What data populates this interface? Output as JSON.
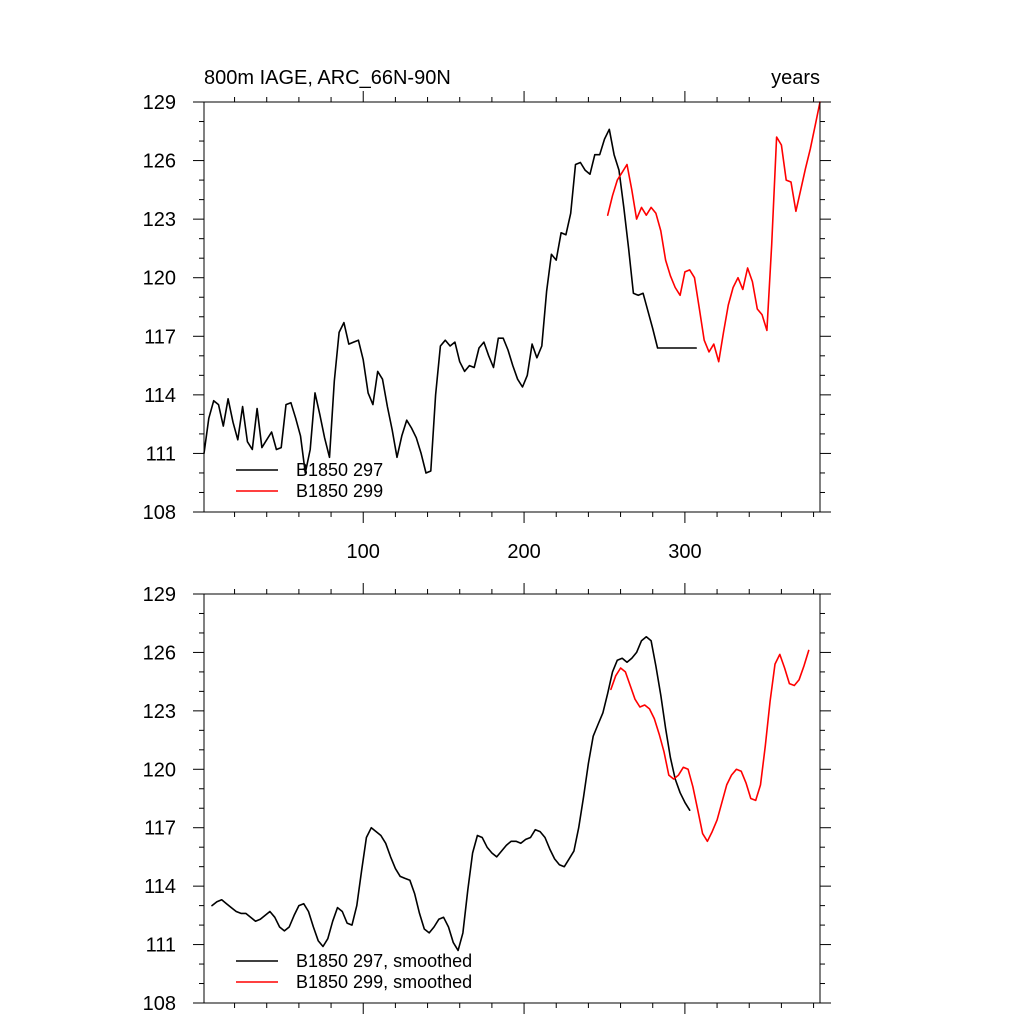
{
  "colors": {
    "series_1": "#000000",
    "series_2": "#ff0000",
    "background": "#ffffff"
  },
  "chart_data": [
    {
      "type": "line",
      "title_left": "800m IAGE, ARC_66N-90N",
      "title_right": "years",
      "xlim": [
        1,
        384
      ],
      "ylim": [
        108,
        129
      ],
      "x_ticks": [
        100,
        200,
        300
      ],
      "x_tick_labels": [
        "100",
        "200",
        "300"
      ],
      "y_ticks": [
        108,
        111,
        114,
        117,
        120,
        123,
        126,
        129
      ],
      "y_tick_labels": [
        "108",
        "111",
        "114",
        "117",
        "120",
        "123",
        "126",
        "129"
      ],
      "legend_position": "bottom-left",
      "series": [
        {
          "name": "B1850 297",
          "color": "#000000",
          "x": [
            1,
            4,
            7,
            10,
            13,
            16,
            19,
            22,
            25,
            28,
            31,
            34,
            37,
            40,
            43,
            46,
            49,
            52,
            55,
            58,
            61,
            64,
            67,
            70,
            73,
            76,
            79,
            82,
            85,
            88,
            91,
            94,
            97,
            100,
            103,
            106,
            109,
            112,
            115,
            118,
            121,
            124,
            127,
            130,
            133,
            136,
            139,
            142,
            145,
            148,
            151,
            154,
            157,
            160,
            163,
            166,
            169,
            172,
            175,
            178,
            181,
            184,
            187,
            190,
            193,
            196,
            199,
            202,
            205,
            208,
            211,
            214,
            217,
            220,
            223,
            226,
            229,
            232,
            235,
            238,
            241,
            244,
            247,
            250,
            253,
            256,
            259,
            262,
            265,
            268,
            271,
            274,
            277,
            280,
            283,
            286,
            289,
            292,
            295,
            298,
            301,
            304,
            307
          ],
          "y": [
            111.0,
            112.8,
            113.7,
            113.5,
            112.4,
            113.8,
            112.6,
            111.7,
            113.4,
            111.6,
            111.2,
            113.3,
            111.3,
            111.7,
            112.1,
            111.2,
            111.3,
            113.5,
            113.6,
            112.8,
            111.9,
            110.0,
            111.2,
            114.1,
            113.0,
            111.8,
            110.8,
            114.7,
            117.2,
            117.7,
            116.6,
            116.7,
            116.8,
            115.8,
            114.1,
            113.5,
            115.2,
            114.8,
            113.4,
            112.2,
            110.8,
            111.9,
            112.7,
            112.3,
            111.8,
            111.0,
            110.0,
            110.1,
            114.0,
            116.5,
            116.8,
            116.5,
            116.7,
            115.7,
            115.2,
            115.5,
            115.4,
            116.4,
            116.7,
            116.0,
            115.4,
            116.9,
            116.9,
            116.3,
            115.5,
            114.8,
            114.4,
            115.0,
            116.6,
            115.9,
            116.5,
            119.3,
            121.2,
            120.9,
            122.3,
            122.2,
            123.3,
            125.8,
            125.9,
            125.5,
            125.3,
            126.3,
            126.3,
            127.1,
            127.6,
            126.3,
            125.5,
            123.6,
            121.5,
            119.2,
            119.1,
            119.2,
            118.3,
            117.4,
            116.4,
            116.4,
            116.4,
            116.4,
            116.4,
            116.4,
            116.4,
            116.4,
            116.4
          ]
        },
        {
          "name": "B1850 299",
          "color": "#ff0000",
          "x": [
            252,
            255,
            258,
            261,
            264,
            267,
            270,
            273,
            276,
            279,
            282,
            285,
            288,
            291,
            294,
            297,
            300,
            303,
            306,
            309,
            312,
            315,
            318,
            321,
            324,
            327,
            330,
            333,
            336,
            339,
            342,
            345,
            348,
            351,
            354,
            357,
            360,
            363,
            366,
            369,
            372,
            375,
            378,
            381,
            384
          ],
          "y": [
            123.2,
            124.2,
            125.0,
            125.4,
            125.8,
            124.5,
            123.0,
            123.6,
            123.2,
            123.6,
            123.3,
            122.4,
            120.9,
            120.1,
            119.5,
            119.1,
            120.3,
            120.4,
            120.0,
            118.4,
            116.8,
            116.2,
            116.6,
            115.7,
            117.2,
            118.6,
            119.5,
            120.0,
            119.4,
            120.5,
            119.8,
            118.4,
            118.1,
            117.3,
            121.7,
            127.2,
            126.8,
            125.0,
            124.9,
            123.4,
            124.5,
            125.6,
            126.6,
            127.8,
            129.0
          ]
        }
      ]
    },
    {
      "type": "line",
      "xlim": [
        1,
        384
      ],
      "ylim": [
        108,
        129
      ],
      "y_ticks": [
        108,
        111,
        114,
        117,
        120,
        123,
        126,
        129
      ],
      "y_tick_labels": [
        "108",
        "111",
        "114",
        "117",
        "120",
        "123",
        "126",
        "129"
      ],
      "legend_position": "bottom-left",
      "series": [
        {
          "name": "B1850 297, smoothed",
          "color": "#000000",
          "x": [
            6,
            9,
            12,
            15,
            18,
            21,
            24,
            27,
            30,
            33,
            36,
            39,
            42,
            45,
            48,
            51,
            54,
            57,
            60,
            63,
            66,
            69,
            72,
            75,
            78,
            81,
            84,
            87,
            90,
            93,
            96,
            99,
            102,
            105,
            108,
            111,
            114,
            117,
            120,
            123,
            126,
            129,
            132,
            135,
            138,
            141,
            144,
            147,
            150,
            153,
            156,
            159,
            162,
            165,
            168,
            171,
            174,
            177,
            180,
            183,
            186,
            189,
            192,
            195,
            198,
            201,
            204,
            207,
            210,
            213,
            216,
            219,
            222,
            225,
            228,
            231,
            234,
            237,
            240,
            243,
            246,
            249,
            252,
            255,
            258,
            261,
            264,
            267,
            270,
            273,
            276,
            279,
            282,
            285,
            288,
            291,
            294,
            297,
            300,
            303
          ],
          "y": [
            113.0,
            113.2,
            113.3,
            113.1,
            112.9,
            112.7,
            112.6,
            112.6,
            112.4,
            112.2,
            112.3,
            112.5,
            112.7,
            112.4,
            111.9,
            111.7,
            111.9,
            112.5,
            113.0,
            113.1,
            112.7,
            111.9,
            111.2,
            110.9,
            111.3,
            112.2,
            112.9,
            112.7,
            112.1,
            112.0,
            113.0,
            114.8,
            116.5,
            117.0,
            116.8,
            116.6,
            116.2,
            115.5,
            114.9,
            114.5,
            114.4,
            114.3,
            113.6,
            112.6,
            111.8,
            111.6,
            111.9,
            112.3,
            112.4,
            111.9,
            111.1,
            110.7,
            111.6,
            113.8,
            115.7,
            116.6,
            116.5,
            116.0,
            115.7,
            115.5,
            115.8,
            116.1,
            116.3,
            116.3,
            116.2,
            116.4,
            116.5,
            116.9,
            116.8,
            116.5,
            115.9,
            115.4,
            115.1,
            115.0,
            115.4,
            115.8,
            117.0,
            118.6,
            120.3,
            121.7,
            122.3,
            122.9,
            123.9,
            125.0,
            125.6,
            125.7,
            125.5,
            125.7,
            126.0,
            126.6,
            126.8,
            126.6,
            125.3,
            123.8,
            122.1,
            120.6,
            119.5,
            118.8,
            118.3,
            117.9
          ]
        },
        {
          "name": "B1850 299, smoothed",
          "color": "#ff0000",
          "x": [
            254,
            257,
            260,
            263,
            266,
            269,
            272,
            275,
            278,
            281,
            284,
            287,
            290,
            293,
            296,
            299,
            302,
            305,
            308,
            311,
            314,
            317,
            320,
            323,
            326,
            329,
            332,
            335,
            338,
            341,
            344,
            347,
            350,
            353,
            356,
            359,
            362,
            365,
            368,
            371,
            374,
            377
          ],
          "y": [
            124.1,
            124.8,
            125.2,
            125.0,
            124.3,
            123.6,
            123.2,
            123.3,
            123.1,
            122.6,
            121.8,
            120.9,
            119.7,
            119.5,
            119.7,
            120.1,
            120.0,
            119.1,
            117.9,
            116.7,
            116.3,
            116.8,
            117.4,
            118.3,
            119.2,
            119.7,
            120.0,
            119.9,
            119.3,
            118.5,
            118.4,
            119.2,
            121.2,
            123.5,
            125.4,
            125.9,
            125.2,
            124.4,
            124.3,
            124.6,
            125.3,
            126.1
          ]
        }
      ]
    }
  ]
}
